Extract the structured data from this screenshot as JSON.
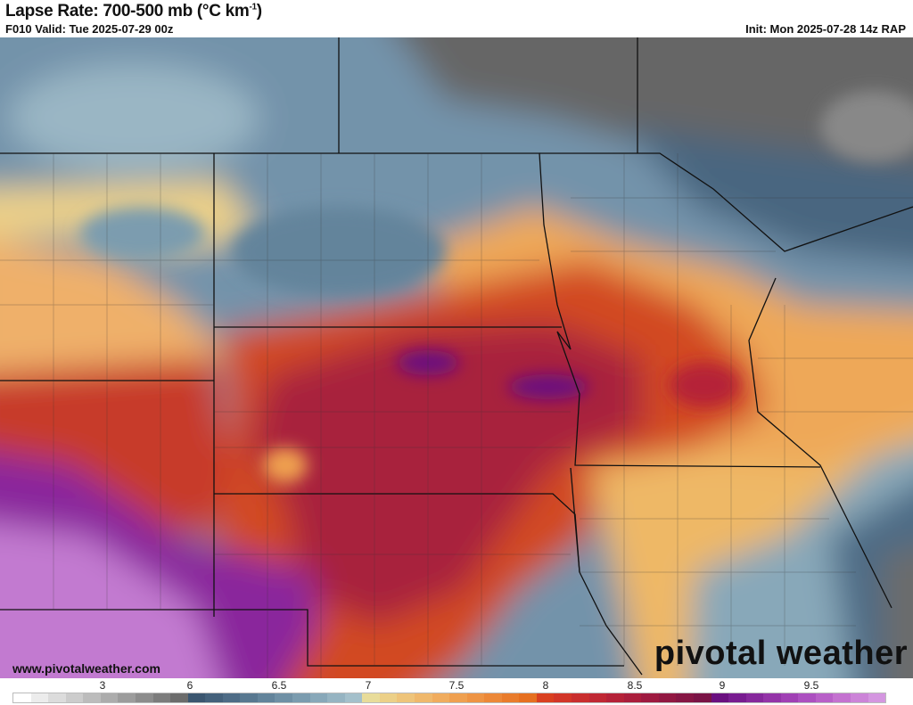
{
  "header": {
    "title": "Lapse Rate: 700-500 mb (°C km",
    "title_sup": "-1",
    "title_close": ")",
    "valid": "F010 Valid: Tue 2025-07-29 00z",
    "init": "Init: Mon 2025-07-28 14z RAP"
  },
  "footer": {
    "website": "www.pivotalweather.com",
    "logo": "pivotal weather"
  },
  "colorbar": {
    "labels": [
      "3",
      "6",
      "6.5",
      "7",
      "7.5",
      "8",
      "8.5",
      "9",
      "9.5"
    ],
    "colors": [
      "#ffffff",
      "#ececec",
      "#dcdcdc",
      "#cccccc",
      "#bcbcbc",
      "#acacac",
      "#9c9c9c",
      "#8c8c8c",
      "#7c7c7c",
      "#6c6c6c",
      "#3b5670",
      "#44617b",
      "#4e6c86",
      "#587890",
      "#63849b",
      "#6f90a5",
      "#7b9caf",
      "#88a8b9",
      "#96b4c2",
      "#a4c0cb",
      "#e8dc9a",
      "#ecd088",
      "#eec47a",
      "#efb86c",
      "#f0ac5e",
      "#efa050",
      "#ee9444",
      "#ec8838",
      "#e97c2c",
      "#e67020",
      "#d94020",
      "#d23628",
      "#c92e2e",
      "#c02834",
      "#b52238",
      "#aa1e3c",
      "#9e1a40",
      "#921842",
      "#861644",
      "#7a1446",
      "#6a1080",
      "#781c90",
      "#86289c",
      "#9434a8",
      "#a040b4",
      "#ac50c0",
      "#b860c8",
      "#c472d0",
      "#cc84d8",
      "#d496e0"
    ]
  }
}
